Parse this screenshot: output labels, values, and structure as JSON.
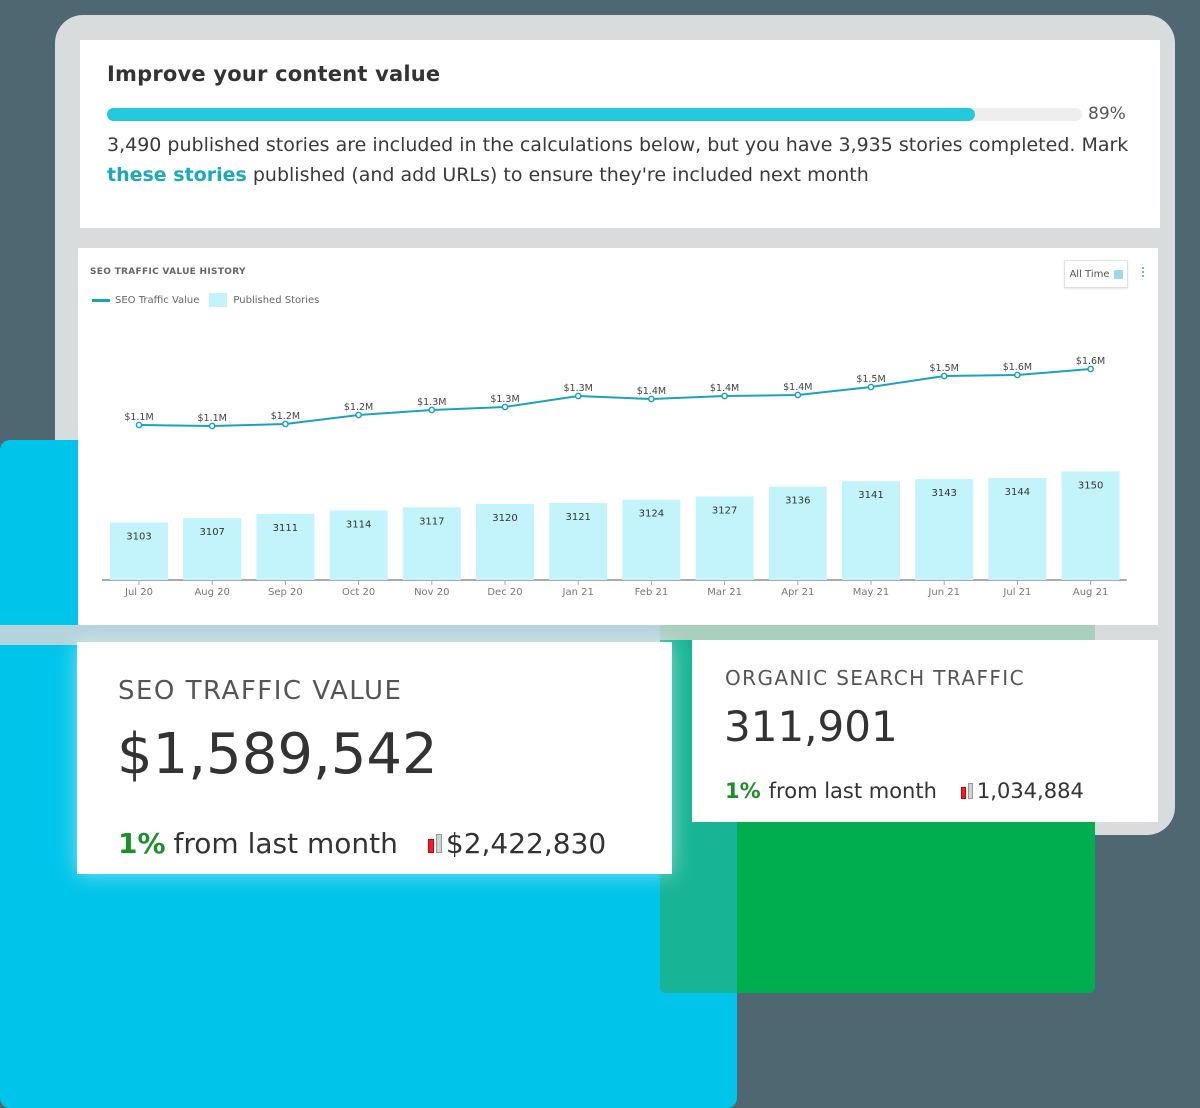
{
  "colors": {
    "background": "#4e6770",
    "accent_cyan": "#22cadc",
    "link": "#1aa9bd",
    "line_series": "#1aa3bb",
    "bar_series": "#c4f4fb",
    "blue_block": "#00c4ea",
    "green_block": "#00ad4f",
    "positive": "#1d8f2a",
    "spark_red": "#ee1c35"
  },
  "improve": {
    "title": "Improve your content value",
    "progress_pct_value": 89,
    "progress_pct_label": "89%",
    "text_before_link": "3,490 published stories are included in the calculations below, but you have 3,935 stories completed. Mark ",
    "link_text": "these stories",
    "text_after_link": " published (and add URLs) to ensure they're included next month"
  },
  "chart": {
    "title": "SEO TRAFFIC VALUE HISTORY",
    "legend_line": "SEO Traffic Value",
    "legend_bar": "Published Stories",
    "range_button": "All Time",
    "range_icon": "calendar-icon",
    "menu_icon": "kebab-menu-icon"
  },
  "chart_data": {
    "type": "bar",
    "title": "SEO TRAFFIC VALUE HISTORY",
    "categories": [
      "Jul 20",
      "Aug 20",
      "Sep 20",
      "Oct 20",
      "Nov 20",
      "Dec 20",
      "Jan 21",
      "Feb 21",
      "Mar 21",
      "Apr 21",
      "May 21",
      "Jun 21",
      "Jul 21",
      "Aug 21"
    ],
    "series": [
      {
        "name": "Published Stories",
        "type": "bar",
        "values": [
          3103,
          3107,
          3111,
          3114,
          3117,
          3120,
          3121,
          3124,
          3127,
          3136,
          3141,
          3143,
          3144,
          3150
        ]
      },
      {
        "name": "SEO Traffic Value",
        "type": "line",
        "values": [
          1.1,
          1.1,
          1.2,
          1.2,
          1.3,
          1.3,
          1.3,
          1.4,
          1.4,
          1.4,
          1.5,
          1.5,
          1.6,
          1.6
        ],
        "labels": [
          "$1.1M",
          "$1.1M",
          "$1.2M",
          "$1.2M",
          "$1.3M",
          "$1.3M",
          "$1.3M",
          "$1.4M",
          "$1.4M",
          "$1.4M",
          "$1.5M",
          "$1.5M",
          "$1.6M",
          "$1.6M"
        ],
        "unit": "$M"
      }
    ],
    "xlabel": "",
    "ylabel": "",
    "grid": false,
    "legend_position": "top-left"
  },
  "metrics": {
    "seo": {
      "label": "SEO TRAFFIC VALUE",
      "value": "$1,589,542",
      "change_pct": "1%",
      "change_text": "from last month",
      "spark_icon": "mini-bar-chart-icon",
      "compare_value": "$2,422,830"
    },
    "organic": {
      "label": "ORGANIC SEARCH TRAFFIC",
      "value": "311,901",
      "change_pct": "1%",
      "change_text": "from last month",
      "spark_icon": "mini-bar-chart-icon",
      "compare_value": "1,034,884"
    }
  }
}
